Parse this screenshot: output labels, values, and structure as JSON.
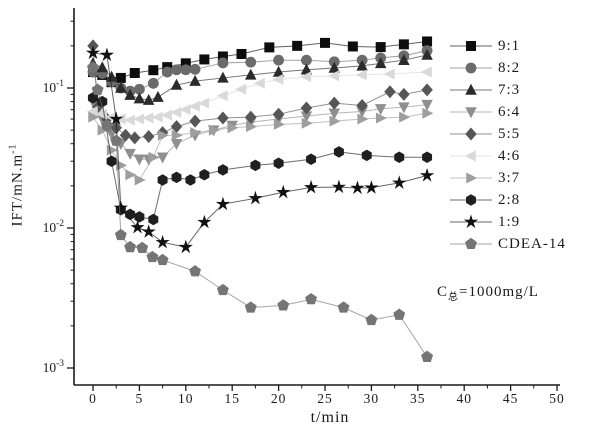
{
  "figure": {
    "background": "#ffffff",
    "axis_color": "#1a1a1a"
  },
  "x_axis": {
    "label": "t/min",
    "tick_labels": [
      "0",
      "5",
      "10",
      "15",
      "20",
      "25",
      "30",
      "35",
      "40",
      "45",
      "50"
    ],
    "minor_tick_step": 2.5
  },
  "y_axis": {
    "label_base": "IFT/mN.m",
    "label_sup": "-1",
    "tick_base": "10",
    "tick_exponents": [
      "-1",
      "-2",
      "-3"
    ],
    "scale": "log"
  },
  "annotation": {
    "base": "C",
    "sub": "总",
    "rest": "=1000mg/L"
  },
  "chart_data": {
    "type": "line",
    "title": "",
    "xlabel": "t/min",
    "ylabel": "IFT/mN.m^-1",
    "x_range": [
      0,
      50
    ],
    "y_scale": "log",
    "y_range": [
      0.001,
      0.3
    ],
    "grid": false,
    "legend_position": "right",
    "series": [
      {
        "name": "9:1",
        "marker": "square",
        "color": "#0d0d0d",
        "x": [
          0,
          1,
          2,
          3,
          4.5,
          6.5,
          8,
          10,
          12,
          14,
          16,
          19,
          22,
          25,
          28,
          31,
          33.5,
          36
        ],
        "y": [
          0.13,
          0.124,
          0.11,
          0.118,
          0.128,
          0.134,
          0.141,
          0.15,
          0.16,
          0.168,
          0.175,
          0.195,
          0.2,
          0.21,
          0.198,
          0.196,
          0.205,
          0.215
        ]
      },
      {
        "name": "8:2",
        "marker": "circle",
        "color": "#6b6b6b",
        "x": [
          0,
          1,
          2,
          3,
          4,
          5,
          6.5,
          8,
          9,
          10,
          11,
          14,
          17,
          20,
          23,
          26,
          29,
          31,
          33.5,
          36
        ],
        "y": [
          0.13,
          0.127,
          0.111,
          0.1,
          0.095,
          0.098,
          0.108,
          0.13,
          0.135,
          0.135,
          0.136,
          0.151,
          0.153,
          0.158,
          0.158,
          0.154,
          0.158,
          0.164,
          0.17,
          0.185
        ]
      },
      {
        "name": "7:3",
        "marker": "triangle-up",
        "color": "#2b2b2b",
        "x": [
          0,
          1,
          2,
          3,
          4,
          5,
          6,
          7,
          9,
          11,
          14,
          17,
          20,
          23,
          26,
          29,
          31,
          33.5,
          36
        ],
        "y": [
          0.15,
          0.14,
          0.12,
          0.1,
          0.089,
          0.084,
          0.082,
          0.086,
          0.105,
          0.112,
          0.118,
          0.124,
          0.13,
          0.135,
          0.139,
          0.144,
          0.15,
          0.158,
          0.172
        ]
      },
      {
        "name": "6:4",
        "marker": "triangle-down",
        "color": "#8f8f8f",
        "x": [
          0,
          1,
          2,
          3,
          4,
          5,
          6,
          7.5,
          9,
          11,
          13,
          15,
          17,
          20,
          23,
          26,
          29,
          31,
          33.5,
          36
        ],
        "y": [
          0.08,
          0.06,
          0.047,
          0.04,
          0.034,
          0.031,
          0.031,
          0.032,
          0.04,
          0.046,
          0.05,
          0.054,
          0.057,
          0.06,
          0.063,
          0.066,
          0.068,
          0.071,
          0.073,
          0.076
        ]
      },
      {
        "name": "5:5",
        "marker": "diamond",
        "color": "#565656",
        "x": [
          0,
          0.5,
          1.5,
          2.5,
          3.5,
          4.5,
          6,
          7.5,
          9,
          11,
          14,
          17,
          20,
          23,
          26,
          29,
          32,
          33.5,
          36
        ],
        "y": [
          0.2,
          0.073,
          0.06,
          0.052,
          0.046,
          0.044,
          0.045,
          0.048,
          0.053,
          0.058,
          0.061,
          0.062,
          0.065,
          0.072,
          0.078,
          0.075,
          0.094,
          0.09,
          0.097
        ]
      },
      {
        "name": "4:6",
        "marker": "triangle-left",
        "color": "#d9d9d9",
        "x": [
          0,
          1,
          2,
          3,
          4,
          5,
          6,
          7,
          8,
          9,
          10,
          11,
          12,
          14,
          16,
          18,
          20,
          23,
          26,
          29,
          32,
          36
        ],
        "y": [
          0.068,
          0.065,
          0.062,
          0.06,
          0.059,
          0.06,
          0.061,
          0.062,
          0.064,
          0.067,
          0.07,
          0.074,
          0.078,
          0.088,
          0.098,
          0.108,
          0.115,
          0.12,
          0.122,
          0.124,
          0.126,
          0.13
        ]
      },
      {
        "name": "3:7",
        "marker": "triangle-right",
        "color": "#9e9e9e",
        "x": [
          0,
          1,
          2,
          3,
          4,
          5,
          6.5,
          7.5,
          9,
          11,
          13,
          15,
          17,
          20,
          23,
          26,
          29,
          31,
          33.5,
          36
        ],
        "y": [
          0.062,
          0.05,
          0.036,
          0.028,
          0.024,
          0.022,
          0.032,
          0.046,
          0.046,
          0.048,
          0.05,
          0.052,
          0.053,
          0.055,
          0.056,
          0.058,
          0.06,
          0.061,
          0.062,
          0.066
        ]
      },
      {
        "name": "2:8",
        "marker": "hexagon",
        "color": "#1f1f1f",
        "x": [
          0,
          1,
          2,
          3,
          4,
          5,
          6.5,
          7.5,
          9,
          10.5,
          12,
          14,
          17.5,
          20,
          23.5,
          26.5,
          29.5,
          33,
          36
        ],
        "y": [
          0.085,
          0.08,
          0.03,
          0.0135,
          0.0125,
          0.012,
          0.0115,
          0.022,
          0.023,
          0.022,
          0.024,
          0.026,
          0.028,
          0.029,
          0.031,
          0.035,
          0.033,
          0.032,
          0.032
        ]
      },
      {
        "name": "1:9",
        "marker": "star",
        "color": "#111111",
        "x": [
          0,
          1.5,
          2.5,
          3,
          4.8,
          6,
          7.5,
          10,
          12,
          14,
          17.5,
          20.5,
          23.5,
          26.5,
          28.5,
          30,
          33,
          36
        ],
        "y": [
          0.178,
          0.172,
          0.06,
          0.0139,
          0.0101,
          0.0094,
          0.0079,
          0.0073,
          0.011,
          0.0148,
          0.0163,
          0.018,
          0.0195,
          0.0196,
          0.0193,
          0.0194,
          0.021,
          0.0237
        ]
      },
      {
        "name": "CDEA-14",
        "marker": "pentagon",
        "color": "#757575",
        "x": [
          0,
          0.5,
          1.5,
          2.5,
          3,
          4,
          5.3,
          6.4,
          7.5,
          11,
          14,
          17,
          20.5,
          23.5,
          27,
          30,
          33,
          36
        ],
        "y": [
          0.14,
          0.097,
          0.054,
          0.042,
          0.0089,
          0.0073,
          0.0072,
          0.0062,
          0.0059,
          0.0049,
          0.0036,
          0.0027,
          0.0028,
          0.0031,
          0.0027,
          0.0022,
          0.0024,
          0.0012
        ]
      }
    ]
  }
}
